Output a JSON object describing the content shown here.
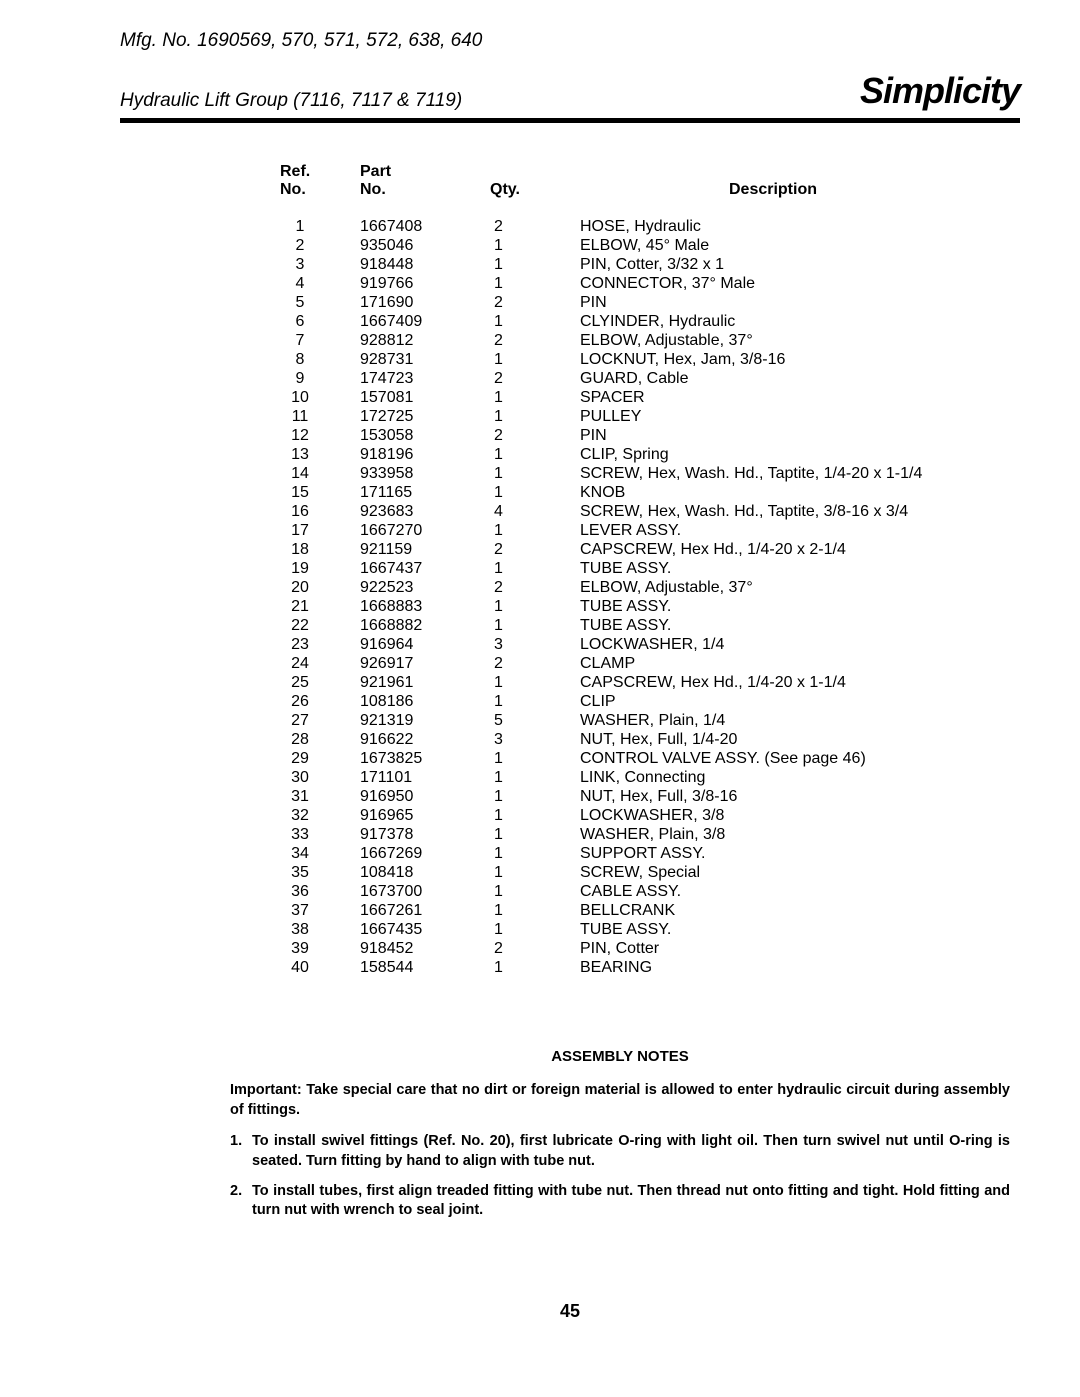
{
  "header": {
    "mfg": "Mfg. No. 1690569, 570, 571, 572, 638, 640",
    "subtitle": "Hydraulic Lift Group (7116, 7117 & 7119)",
    "brand": "Simplicity"
  },
  "columns": {
    "ref1": "Ref.",
    "ref2": "No.",
    "part1": "Part",
    "part2": "No.",
    "qty": "Qty.",
    "desc": "Description"
  },
  "rows": [
    {
      "ref": "1",
      "part": "1667408",
      "qty": "2",
      "desc": "HOSE, Hydraulic"
    },
    {
      "ref": "2",
      "part": "935046",
      "qty": "1",
      "desc": "ELBOW, 45° Male"
    },
    {
      "ref": "3",
      "part": "918448",
      "qty": "1",
      "desc": "PIN, Cotter, 3/32 x 1"
    },
    {
      "ref": "4",
      "part": "919766",
      "qty": "1",
      "desc": "CONNECTOR, 37° Male"
    },
    {
      "ref": "5",
      "part": "171690",
      "qty": "2",
      "desc": "PIN"
    },
    {
      "ref": "6",
      "part": "1667409",
      "qty": "1",
      "desc": "CLYINDER, Hydraulic"
    },
    {
      "ref": "7",
      "part": "928812",
      "qty": "2",
      "desc": "ELBOW, Adjustable, 37°"
    },
    {
      "ref": "8",
      "part": "928731",
      "qty": "1",
      "desc": "LOCKNUT, Hex, Jam, 3/8-16"
    },
    {
      "ref": "9",
      "part": "174723",
      "qty": "2",
      "desc": "GUARD, Cable"
    },
    {
      "ref": "10",
      "part": "157081",
      "qty": "1",
      "desc": "SPACER"
    },
    {
      "ref": "11",
      "part": "172725",
      "qty": "1",
      "desc": "PULLEY"
    },
    {
      "ref": "12",
      "part": "153058",
      "qty": "2",
      "desc": "PIN"
    },
    {
      "ref": "13",
      "part": "918196",
      "qty": "1",
      "desc": "CLIP, Spring"
    },
    {
      "ref": "14",
      "part": "933958",
      "qty": "1",
      "desc": "SCREW, Hex, Wash. Hd., Taptite, 1/4-20 x 1-1/4"
    },
    {
      "ref": "15",
      "part": "171165",
      "qty": "1",
      "desc": "KNOB"
    },
    {
      "ref": "16",
      "part": "923683",
      "qty": "4",
      "desc": "SCREW, Hex, Wash. Hd., Taptite, 3/8-16 x 3/4"
    },
    {
      "ref": "17",
      "part": "1667270",
      "qty": "1",
      "desc": "LEVER ASSY."
    },
    {
      "ref": "18",
      "part": "921159",
      "qty": "2",
      "desc": "CAPSCREW, Hex Hd., 1/4-20 x 2-1/4"
    },
    {
      "ref": "19",
      "part": "1667437",
      "qty": "1",
      "desc": "TUBE ASSY."
    },
    {
      "ref": "20",
      "part": "922523",
      "qty": "2",
      "desc": "ELBOW, Adjustable, 37°"
    },
    {
      "ref": "21",
      "part": "1668883",
      "qty": "1",
      "desc": "TUBE ASSY."
    },
    {
      "ref": "22",
      "part": "1668882",
      "qty": "1",
      "desc": "TUBE ASSY."
    },
    {
      "ref": "23",
      "part": "916964",
      "qty": "3",
      "desc": "LOCKWASHER, 1/4"
    },
    {
      "ref": "24",
      "part": "926917",
      "qty": "2",
      "desc": "CLAMP"
    },
    {
      "ref": "25",
      "part": "921961",
      "qty": "1",
      "desc": "CAPSCREW, Hex Hd., 1/4-20 x 1-1/4"
    },
    {
      "ref": "26",
      "part": "108186",
      "qty": "1",
      "desc": "CLIP"
    },
    {
      "ref": "27",
      "part": "921319",
      "qty": "5",
      "desc": "WASHER, Plain, 1/4"
    },
    {
      "ref": "28",
      "part": "916622",
      "qty": "3",
      "desc": "NUT, Hex, Full, 1/4-20"
    },
    {
      "ref": "29",
      "part": "1673825",
      "qty": "1",
      "desc": "CONTROL VALVE ASSY. (See page 46)"
    },
    {
      "ref": "30",
      "part": "171101",
      "qty": "1",
      "desc": "LINK, Connecting"
    },
    {
      "ref": "31",
      "part": "916950",
      "qty": "1",
      "desc": "NUT, Hex, Full, 3/8-16"
    },
    {
      "ref": "32",
      "part": "916965",
      "qty": "1",
      "desc": "LOCKWASHER, 3/8"
    },
    {
      "ref": "33",
      "part": "917378",
      "qty": "1",
      "desc": "WASHER, Plain, 3/8"
    },
    {
      "ref": "34",
      "part": "1667269",
      "qty": "1",
      "desc": "SUPPORT ASSY."
    },
    {
      "ref": "35",
      "part": "108418",
      "qty": "1",
      "desc": "SCREW, Special"
    },
    {
      "ref": "36",
      "part": "1673700",
      "qty": "1",
      "desc": "CABLE ASSY."
    },
    {
      "ref": "37",
      "part": "1667261",
      "qty": "1",
      "desc": "BELLCRANK"
    },
    {
      "ref": "38",
      "part": "1667435",
      "qty": "1",
      "desc": "TUBE ASSY."
    },
    {
      "ref": "39",
      "part": "918452",
      "qty": "2",
      "desc": "PIN, Cotter"
    },
    {
      "ref": "40",
      "part": "158544",
      "qty": "1",
      "desc": "BEARING"
    }
  ],
  "notes": {
    "title": "ASSEMBLY NOTES",
    "important": "Important: Take special care that no dirt or foreign material is allowed to enter hydraulic circuit during assembly of fittings.",
    "n1num": "1.",
    "n1": "To install swivel fittings (Ref. No. 20), first lubricate O-ring with light oil. Then turn swivel nut until O-ring is seated. Turn fitting by hand to align with tube nut.",
    "n2num": "2.",
    "n2": "To install tubes, first align treaded fitting with tube nut. Then thread nut onto fitting and tight. Hold fitting and turn nut with wrench to seal joint."
  },
  "page": "45"
}
